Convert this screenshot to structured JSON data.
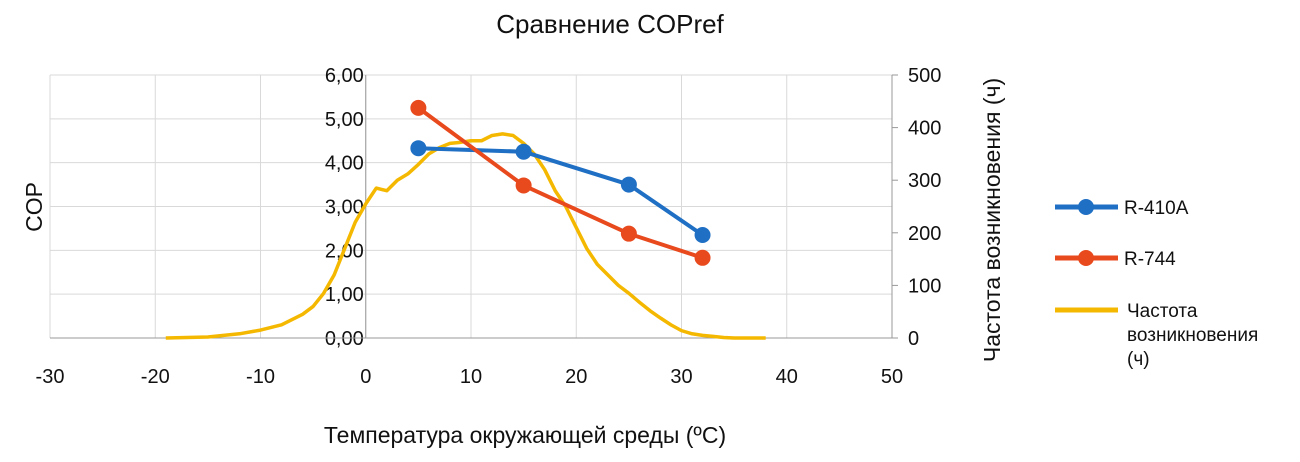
{
  "chart_data": {
    "type": "line",
    "title": "Сравнение COPref",
    "xlabel": "Температура окружающей среды (ºC)",
    "ylabel": "COP",
    "y2label": "Частота возникновения (ч)",
    "xlim": [
      -30,
      50
    ],
    "ylim": [
      0,
      6
    ],
    "y2lim": [
      0,
      500
    ],
    "xticks": [
      -30,
      -20,
      -10,
      0,
      10,
      20,
      30,
      40,
      50
    ],
    "xtick_labels": [
      "-30",
      "-20",
      "-10",
      "0",
      "10",
      "20",
      "30",
      "40",
      "50"
    ],
    "yticks": [
      0,
      1,
      2,
      3,
      4,
      5,
      6
    ],
    "ytick_labels": [
      "0,00",
      "1,00",
      "2,00",
      "3,00",
      "4,00",
      "5,00",
      "6,00"
    ],
    "y2ticks": [
      0,
      100,
      200,
      300,
      400,
      500
    ],
    "y2tick_labels": [
      "0",
      "100",
      "200",
      "300",
      "400",
      "500"
    ],
    "grid": true,
    "legend_position": "right",
    "series": [
      {
        "name": "R-410A",
        "axis": "left",
        "color": "#1f6fc4",
        "markers": true,
        "x": [
          5,
          15,
          25,
          32
        ],
        "y": [
          4.33,
          4.25,
          3.5,
          2.35
        ]
      },
      {
        "name": "R-744",
        "axis": "left",
        "color": "#e8491d",
        "markers": true,
        "x": [
          5,
          15,
          25,
          32
        ],
        "y": [
          5.25,
          3.48,
          2.38,
          1.83
        ]
      },
      {
        "name": "Частота возникновения (ч)",
        "legend_lines": [
          "Частота",
          "возникновения",
          "(ч)"
        ],
        "axis": "right",
        "color": "#f5b800",
        "markers": false,
        "x": [
          -19,
          -15,
          -12,
          -10,
          -8,
          -6,
          -5,
          -4,
          -3,
          -2,
          -1,
          0,
          1,
          2,
          3,
          4,
          5,
          6,
          7,
          8,
          9,
          10,
          11,
          12,
          13,
          14,
          15,
          16,
          17,
          18,
          19,
          20,
          21,
          22,
          23,
          24,
          25,
          26,
          27,
          28,
          29,
          30,
          31,
          32,
          33,
          34,
          35,
          38
        ],
        "y": [
          0,
          2,
          8,
          15,
          25,
          45,
          60,
          85,
          120,
          170,
          220,
          255,
          285,
          280,
          300,
          312,
          330,
          350,
          362,
          370,
          372,
          375,
          375,
          385,
          388,
          385,
          370,
          350,
          320,
          280,
          250,
          210,
          170,
          140,
          120,
          100,
          85,
          68,
          52,
          38,
          25,
          14,
          8,
          5,
          3,
          1,
          0,
          0
        ]
      }
    ]
  }
}
